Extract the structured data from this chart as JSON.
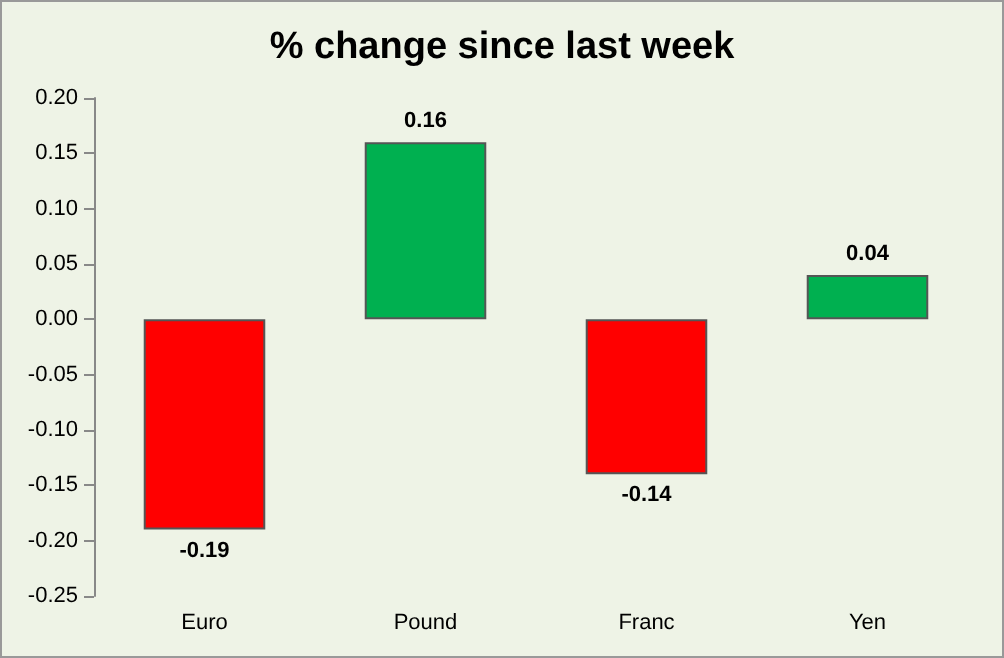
{
  "chart_data": {
    "type": "bar",
    "title": "% change since last week",
    "categories": [
      "Euro",
      "Pound",
      "Franc",
      "Yen"
    ],
    "values": [
      -0.19,
      0.16,
      -0.14,
      0.04
    ],
    "colors": [
      "#ff0000",
      "#00b050",
      "#ff0000",
      "#00b050"
    ],
    "ylim": [
      -0.25,
      0.2
    ],
    "yticks": [
      {
        "value": -0.25,
        "label": "-0.25"
      },
      {
        "value": -0.2,
        "label": "-0.20"
      },
      {
        "value": -0.15,
        "label": "-0.15"
      },
      {
        "value": -0.1,
        "label": "-0.10"
      },
      {
        "value": -0.05,
        "label": "-0.05"
      },
      {
        "value": 0,
        "label": "0.00"
      },
      {
        "value": 0.05,
        "label": "0.05"
      },
      {
        "value": 0.1,
        "label": "0.10"
      },
      {
        "value": 0.15,
        "label": "0.15"
      },
      {
        "value": 0.2,
        "label": "0.20"
      }
    ],
    "data_labels": true
  }
}
